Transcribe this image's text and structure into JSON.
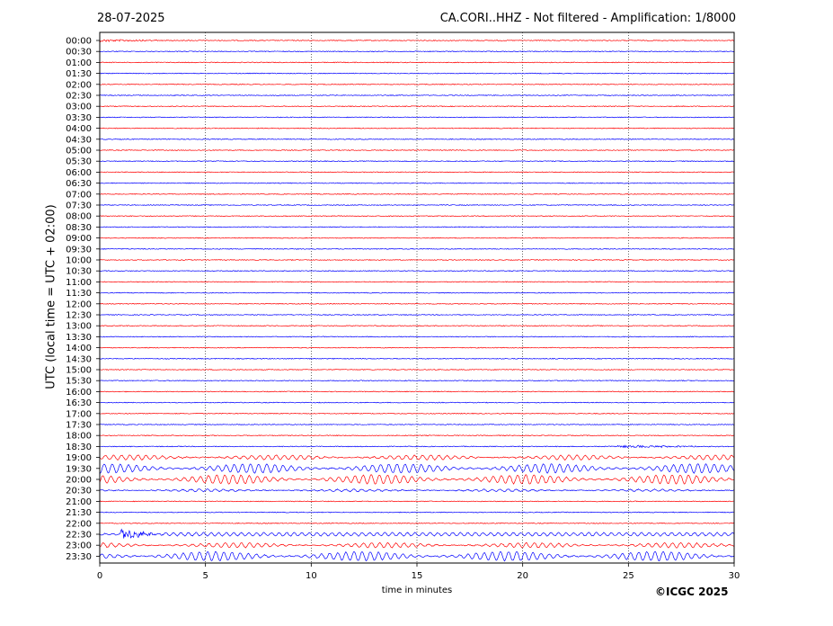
{
  "header": {
    "date": "28-07-2025",
    "title": "CA.CORI..HHZ - Not filtered - Amplification: 1/8000"
  },
  "axes": {
    "ylabel": "UTC (local time = UTC + 02:00)",
    "xlabel": "time in minutes"
  },
  "copyright": "©ICGC 2025",
  "colors": {
    "red": "#ff0000",
    "blue": "#0000ff",
    "grid": "#000000"
  },
  "chart_data": {
    "type": "line",
    "title": "CA.CORI..HHZ - Not filtered - Amplification: 1/8000",
    "xlabel": "time in minutes",
    "ylabel": "UTC (local time = UTC + 02:00)",
    "xlim": [
      0,
      30
    ],
    "x_ticks": [
      0,
      5,
      10,
      15,
      20,
      25,
      30
    ],
    "grid": "vertical dotted lines at x ticks",
    "rows": [
      "00:00",
      "00:30",
      "01:00",
      "01:30",
      "02:00",
      "02:30",
      "03:00",
      "03:30",
      "04:00",
      "04:30",
      "05:00",
      "05:30",
      "06:00",
      "06:30",
      "07:00",
      "07:30",
      "08:00",
      "08:30",
      "09:00",
      "09:30",
      "10:00",
      "10:30",
      "11:00",
      "11:30",
      "12:00",
      "12:30",
      "13:00",
      "13:30",
      "14:00",
      "14:30",
      "15:00",
      "15:30",
      "16:00",
      "16:30",
      "17:00",
      "17:30",
      "18:00",
      "18:30",
      "19:00",
      "19:30",
      "20:00",
      "20:30",
      "21:00",
      "21:30",
      "22:00",
      "22:30",
      "23:00",
      "23:30"
    ],
    "row_colors": [
      "red",
      "blue"
    ],
    "amplitude_profile": [
      {
        "row": "00:00",
        "level": "low",
        "burst_minutes": [
          0,
          4
        ]
      },
      {
        "row": "18:30",
        "level": "low",
        "burst_minutes": [
          24.5,
          30
        ]
      },
      {
        "row": "19:00",
        "level": "medium"
      },
      {
        "row": "19:30",
        "level": "high"
      },
      {
        "row": "20:00",
        "level": "high"
      },
      {
        "row": "20:30",
        "level": "low"
      },
      {
        "row": "22:30",
        "level": "high",
        "burst_minutes": [
          1,
          3
        ]
      },
      {
        "row": "23:00",
        "level": "medium"
      },
      {
        "row": "23:30",
        "level": "high"
      }
    ]
  }
}
